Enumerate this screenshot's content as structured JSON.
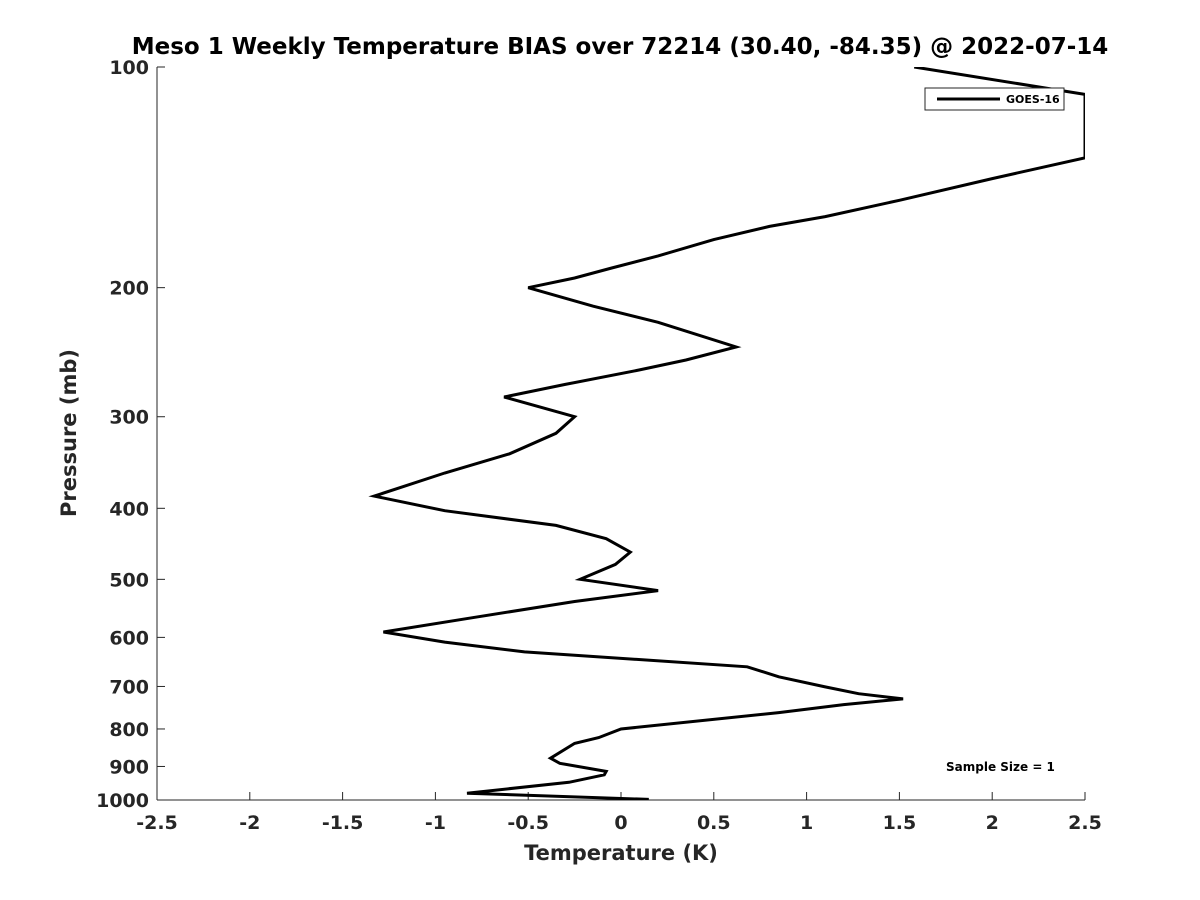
{
  "chart_data": {
    "type": "line",
    "title": "Meso 1 Weekly Temperature BIAS over 72214 (30.40, -84.35) @ 2022-07-14",
    "xlabel": "Temperature (K)",
    "ylabel": "Pressure (mb)",
    "xlim": [
      -2.5,
      2.5
    ],
    "ylim": [
      100,
      1000
    ],
    "y_scale": "log",
    "y_reversed": true,
    "x_ticks": [
      "-2.5",
      "-2",
      "-1.5",
      "-1",
      "-0.5",
      "0",
      "0.5",
      "1",
      "1.5",
      "2",
      "2.5"
    ],
    "y_ticks": [
      "100",
      "200",
      "300",
      "400",
      "500",
      "600",
      "700",
      "800",
      "900",
      "1000"
    ],
    "grid": false,
    "legend_position": "top-right",
    "annotation": "Sample Size = 1",
    "series": [
      {
        "name": "GOES-16",
        "color": "#000000",
        "points": [
          {
            "x": 1.58,
            "p": 100
          },
          {
            "x": 2.5,
            "p": 109
          },
          {
            "x": 2.5,
            "p": 133
          },
          {
            "x": 2.0,
            "p": 142
          },
          {
            "x": 1.5,
            "p": 152
          },
          {
            "x": 1.1,
            "p": 160
          },
          {
            "x": 0.8,
            "p": 165
          },
          {
            "x": 0.5,
            "p": 172
          },
          {
            "x": 0.2,
            "p": 181
          },
          {
            "x": -0.05,
            "p": 188
          },
          {
            "x": -0.25,
            "p": 194
          },
          {
            "x": -0.5,
            "p": 200
          },
          {
            "x": -0.15,
            "p": 212
          },
          {
            "x": 0.2,
            "p": 223
          },
          {
            "x": 0.62,
            "p": 241
          },
          {
            "x": 0.35,
            "p": 251
          },
          {
            "x": 0.1,
            "p": 259
          },
          {
            "x": -0.3,
            "p": 271
          },
          {
            "x": -0.63,
            "p": 282
          },
          {
            "x": -0.25,
            "p": 300
          },
          {
            "x": -0.35,
            "p": 316
          },
          {
            "x": -0.6,
            "p": 337
          },
          {
            "x": -0.95,
            "p": 358
          },
          {
            "x": -1.33,
            "p": 385
          },
          {
            "x": -0.95,
            "p": 403
          },
          {
            "x": -0.35,
            "p": 422
          },
          {
            "x": -0.08,
            "p": 440
          },
          {
            "x": 0.05,
            "p": 459
          },
          {
            "x": -0.03,
            "p": 477
          },
          {
            "x": -0.22,
            "p": 500
          },
          {
            "x": 0.2,
            "p": 518
          },
          {
            "x": -0.25,
            "p": 536
          },
          {
            "x": -0.8,
            "p": 564
          },
          {
            "x": -1.28,
            "p": 590
          },
          {
            "x": -0.95,
            "p": 609
          },
          {
            "x": -0.52,
            "p": 628
          },
          {
            "x": 0.68,
            "p": 658
          },
          {
            "x": 0.85,
            "p": 679
          },
          {
            "x": 1.1,
            "p": 701
          },
          {
            "x": 1.28,
            "p": 716
          },
          {
            "x": 1.52,
            "p": 728
          },
          {
            "x": 1.2,
            "p": 741
          },
          {
            "x": 0.85,
            "p": 760
          },
          {
            "x": 0.0,
            "p": 800
          },
          {
            "x": -0.12,
            "p": 822
          },
          {
            "x": -0.25,
            "p": 837
          },
          {
            "x": -0.38,
            "p": 877
          },
          {
            "x": -0.33,
            "p": 891
          },
          {
            "x": -0.08,
            "p": 914
          },
          {
            "x": -0.09,
            "p": 924
          },
          {
            "x": -0.28,
            "p": 946
          },
          {
            "x": -0.83,
            "p": 979
          },
          {
            "x": 0.15,
            "p": 998
          }
        ]
      }
    ]
  }
}
